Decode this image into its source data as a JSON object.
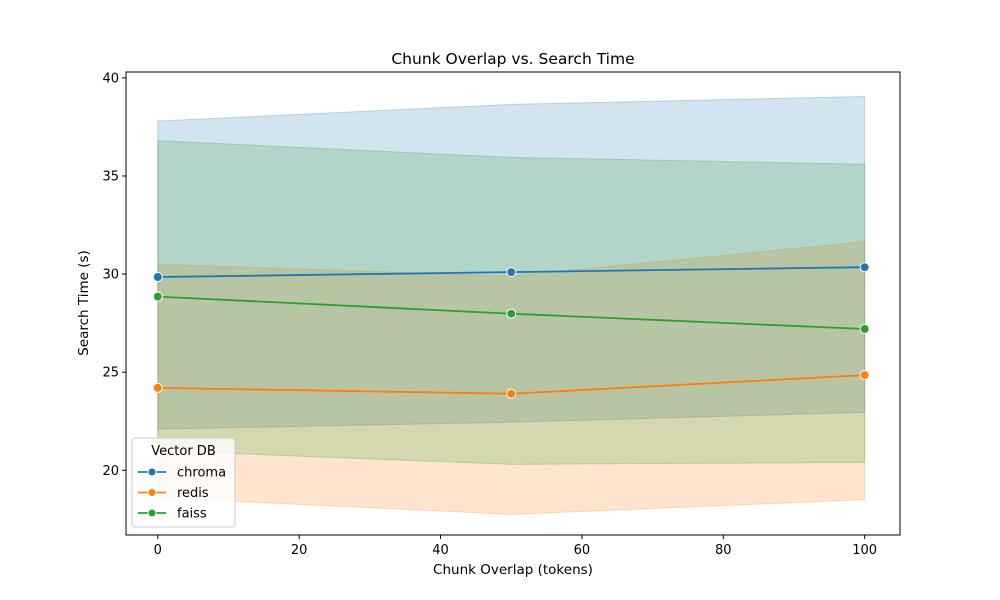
{
  "chart_data": {
    "type": "line",
    "title": "Chunk Overlap vs. Search Time",
    "xlabel": "Chunk Overlap (tokens)",
    "ylabel": "Search Time (s)",
    "xlim": [
      -4.5,
      105
    ],
    "ylim": [
      16.7,
      40.3
    ],
    "xticks": [
      0,
      20,
      40,
      60,
      80,
      100
    ],
    "yticks": [
      20,
      25,
      30,
      35,
      40
    ],
    "grid": false,
    "legend": {
      "title": "Vector DB",
      "placement": "lower-left"
    },
    "x": [
      0,
      50,
      100
    ],
    "series": [
      {
        "name": "chroma",
        "color": "#1f77b4",
        "values": [
          29.85,
          30.1,
          30.35
        ],
        "lower": [
          22.1,
          22.45,
          22.95
        ],
        "upper": [
          37.8,
          38.65,
          39.05
        ]
      },
      {
        "name": "redis",
        "color": "#ff7f0e",
        "values": [
          24.2,
          23.9,
          24.85
        ],
        "lower": [
          18.6,
          17.75,
          18.5
        ],
        "upper": [
          30.5,
          29.9,
          31.65
        ]
      },
      {
        "name": "faiss",
        "color": "#2ca02c",
        "values": [
          28.85,
          27.98,
          27.2
        ],
        "lower": [
          21.0,
          20.3,
          20.4
        ],
        "upper": [
          36.8,
          35.95,
          35.6
        ]
      }
    ]
  }
}
